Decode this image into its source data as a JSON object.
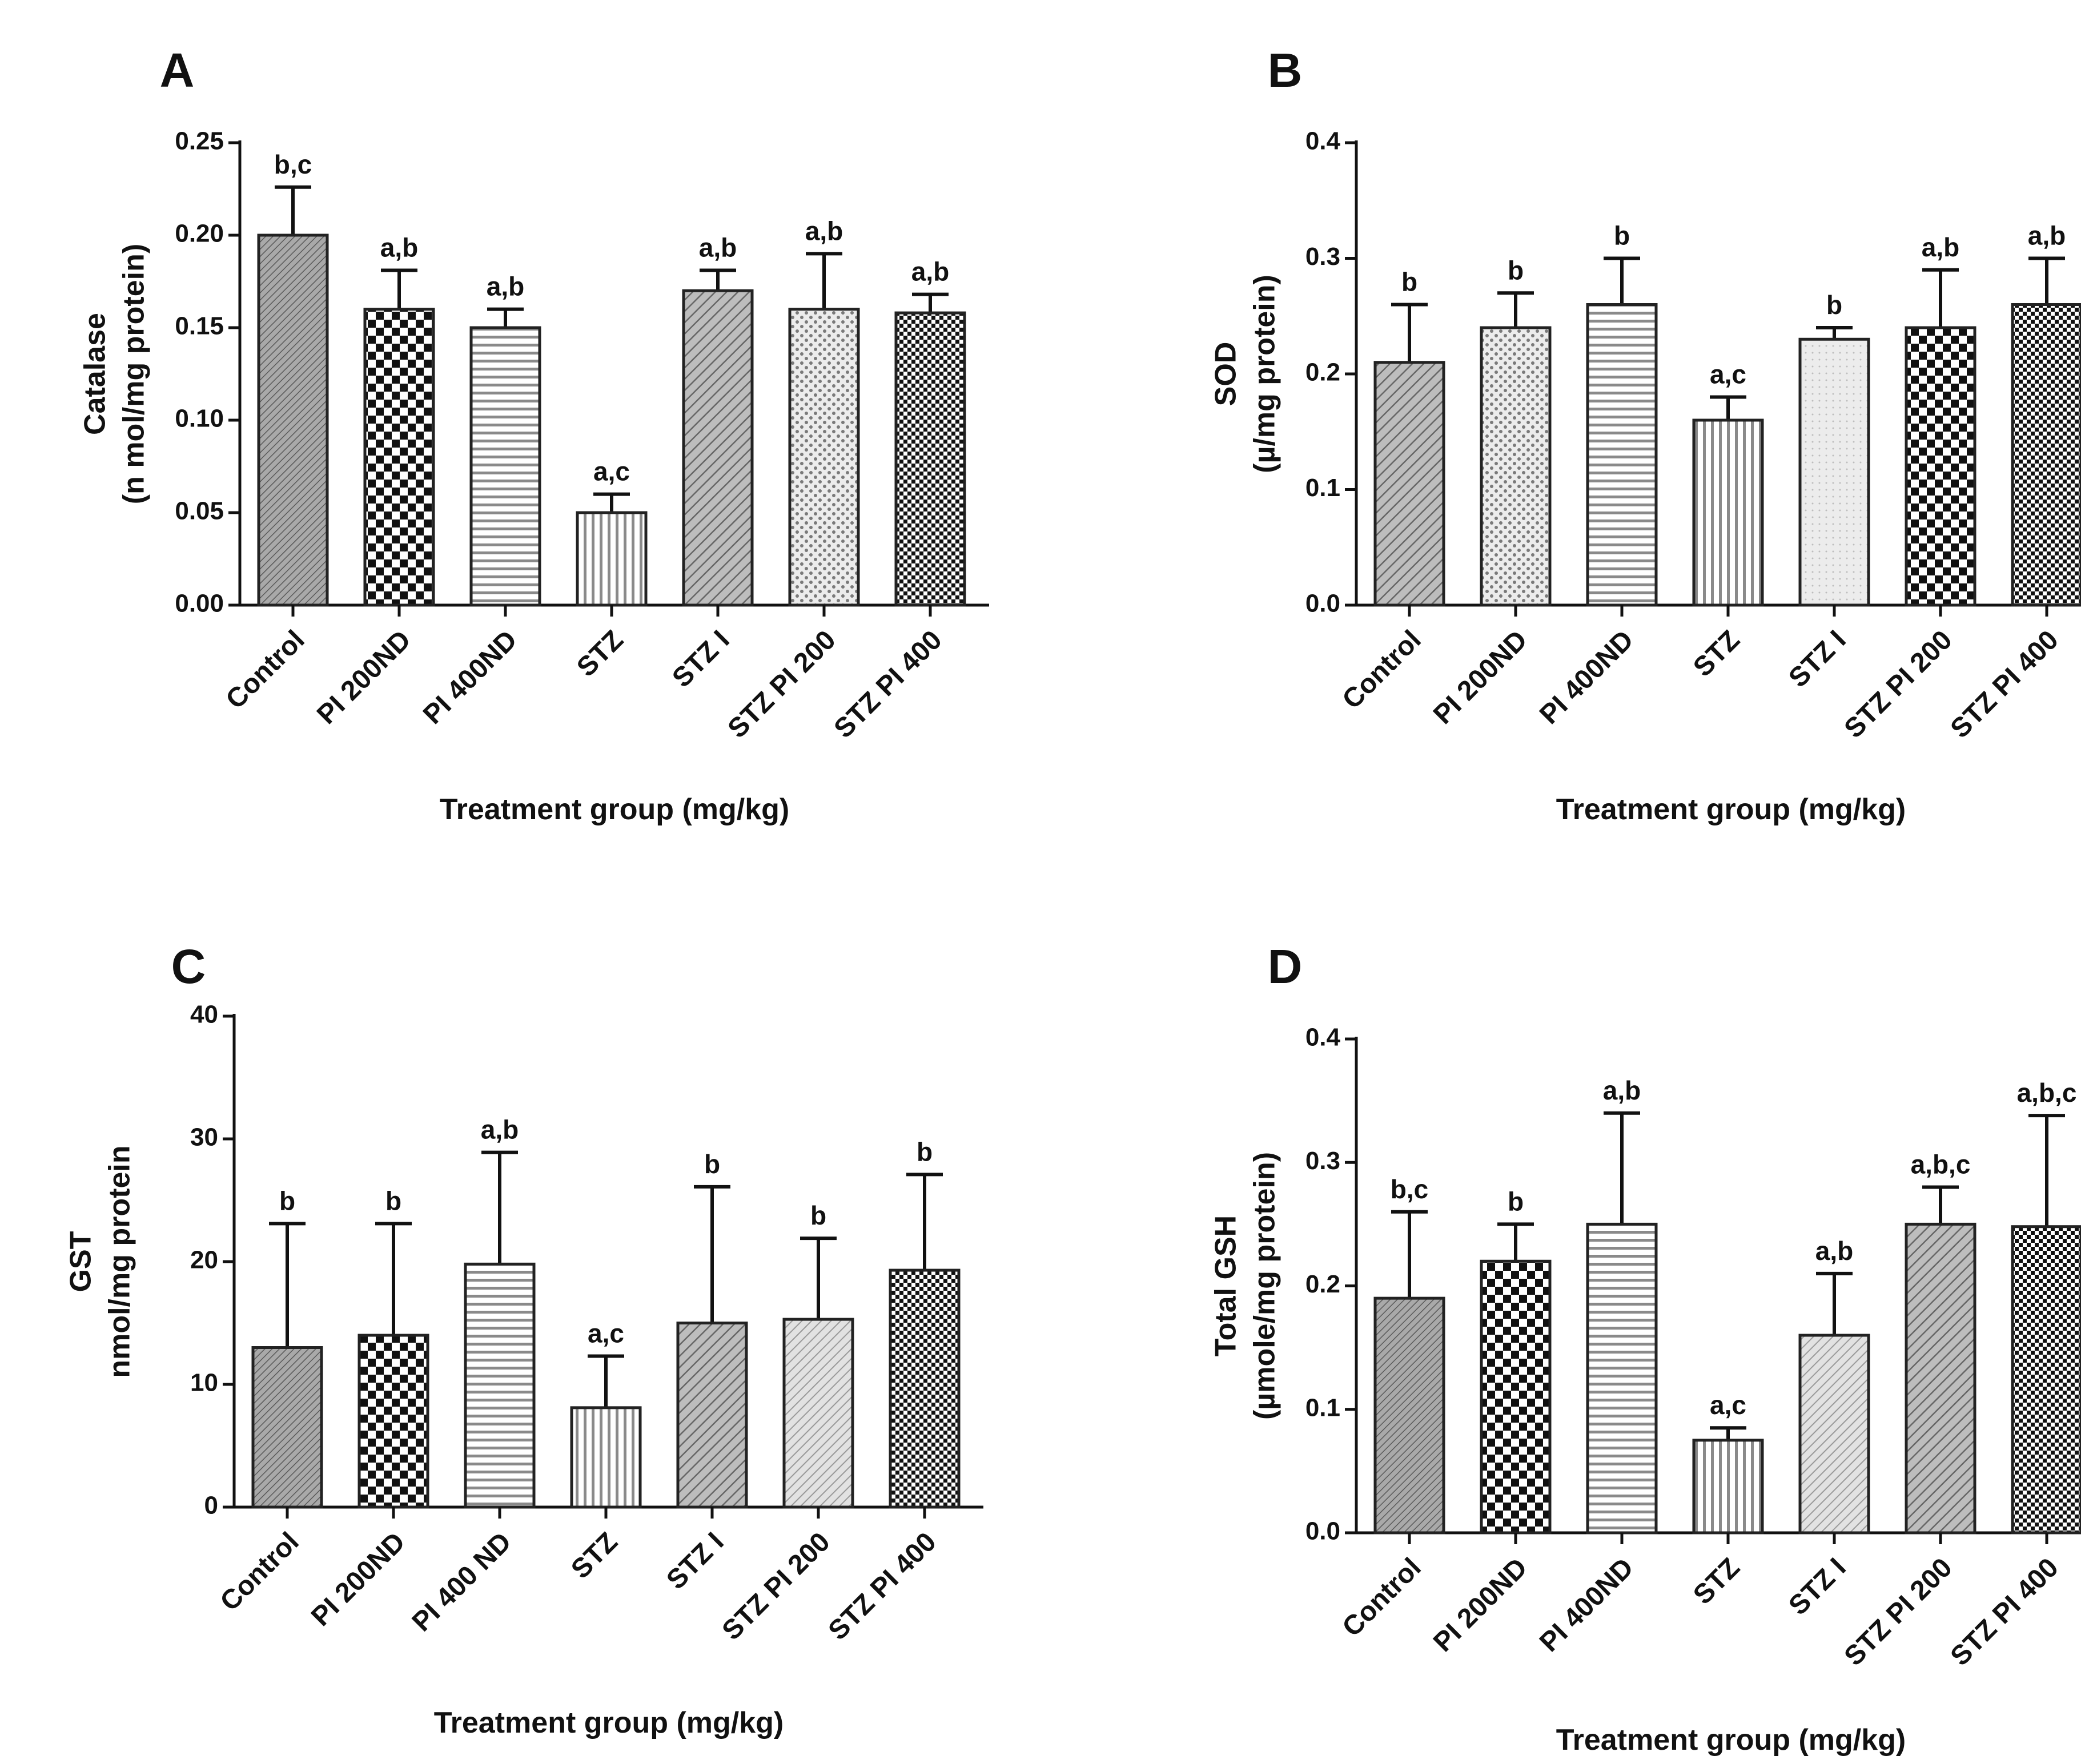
{
  "figure": {
    "panels": [
      "A",
      "B",
      "C",
      "D"
    ]
  },
  "chart_data": [
    {
      "panel": "A",
      "type": "bar",
      "title": "",
      "ylabel_lines": [
        "Catalase",
        "(n mol/mg protein)"
      ],
      "xlabel": "Treatment group (mg/kg)",
      "ylim": [
        0,
        0.25
      ],
      "ticks": [
        0,
        0.05,
        0.1,
        0.15,
        0.2,
        0.25
      ],
      "tick_labels": [
        "0.00",
        "0.05",
        "0.10",
        "0.15",
        "0.20",
        "0.25"
      ],
      "categories": [
        "Control",
        "PI 200ND",
        "PI 400ND",
        "STZ",
        "STZ I",
        "STZ PI 200",
        "STZ PI 400"
      ],
      "values": [
        0.2,
        0.16,
        0.15,
        0.05,
        0.17,
        0.16,
        0.158
      ],
      "errors": [
        0.026,
        0.021,
        0.01,
        0.01,
        0.011,
        0.03,
        0.01
      ],
      "significance": [
        "b,c",
        "a,b",
        "a,b",
        "a,c",
        "a,b",
        "a,b",
        "a,b"
      ],
      "patterns": [
        "diag-fine",
        "check-large",
        "horiz",
        "vert",
        "diag",
        "dots",
        "check-small"
      ]
    },
    {
      "panel": "B",
      "type": "bar",
      "title": "",
      "ylabel_lines": [
        "SOD",
        "(µ/mg protein)"
      ],
      "xlabel": "Treatment group (mg/kg)",
      "ylim": [
        0,
        0.4
      ],
      "ticks": [
        0,
        0.1,
        0.2,
        0.3,
        0.4
      ],
      "tick_labels": [
        "0.0",
        "0.1",
        "0.2",
        "0.3",
        "0.4"
      ],
      "categories": [
        "Control",
        "PI 200ND",
        "PI 400ND",
        "STZ",
        "STZ I",
        "STZ PI 200",
        "STZ PI 400"
      ],
      "values": [
        0.21,
        0.24,
        0.26,
        0.16,
        0.23,
        0.24,
        0.26
      ],
      "errors": [
        0.05,
        0.03,
        0.04,
        0.02,
        0.01,
        0.05,
        0.04
      ],
      "significance": [
        "b",
        "b",
        "b",
        "a,c",
        "b",
        "a,b",
        "a,b"
      ],
      "patterns": [
        "diag",
        "dots",
        "horiz",
        "vert",
        "light",
        "check-large",
        "check-small"
      ]
    },
    {
      "panel": "C",
      "type": "bar",
      "title": "",
      "ylabel_lines": [
        "GST",
        "nmol/mg protein"
      ],
      "xlabel": "Treatment group (mg/kg)",
      "ylim": [
        0,
        40
      ],
      "ticks": [
        0,
        10,
        20,
        30,
        40
      ],
      "tick_labels": [
        "0",
        "10",
        "20",
        "30",
        "40"
      ],
      "categories": [
        "Control",
        "PI 200ND",
        "PI 400 ND",
        "STZ",
        "STZ I",
        "STZ PI 200",
        "STZ PI 400"
      ],
      "values": [
        13,
        14,
        19.8,
        8.1,
        15,
        15.3,
        19.3
      ],
      "errors": [
        10.1,
        9.1,
        9.1,
        4.2,
        11.1,
        6.6,
        7.8
      ],
      "significance": [
        "b",
        "b",
        "a,b",
        "a,c",
        "b",
        "b",
        "b"
      ],
      "patterns": [
        "diag-fine",
        "check-large",
        "horiz",
        "vert",
        "diag",
        "diag-light",
        "check-small"
      ]
    },
    {
      "panel": "D",
      "type": "bar",
      "title": "",
      "ylabel_lines": [
        "Total GSH",
        "(µmole/mg protein)"
      ],
      "xlabel": "Treatment group (mg/kg)",
      "ylim": [
        0,
        0.4
      ],
      "ticks": [
        0,
        0.1,
        0.2,
        0.3,
        0.4
      ],
      "tick_labels": [
        "0.0",
        "0.1",
        "0.2",
        "0.3",
        "0.4"
      ],
      "categories": [
        "Control",
        "PI 200ND",
        "PI 400ND",
        "STZ",
        "STZ I",
        "STZ PI 200",
        "STZ PI 400"
      ],
      "values": [
        0.19,
        0.22,
        0.25,
        0.075,
        0.16,
        0.25,
        0.248
      ],
      "errors": [
        0.07,
        0.03,
        0.09,
        0.01,
        0.05,
        0.03,
        0.09
      ],
      "significance": [
        "b,c",
        "b",
        "a,b",
        "a,c",
        "a,b",
        "a,b,c",
        "a,b,c"
      ],
      "patterns": [
        "diag-fine",
        "check-large",
        "horiz",
        "vert",
        "diag-light",
        "diag",
        "check-small"
      ]
    }
  ]
}
